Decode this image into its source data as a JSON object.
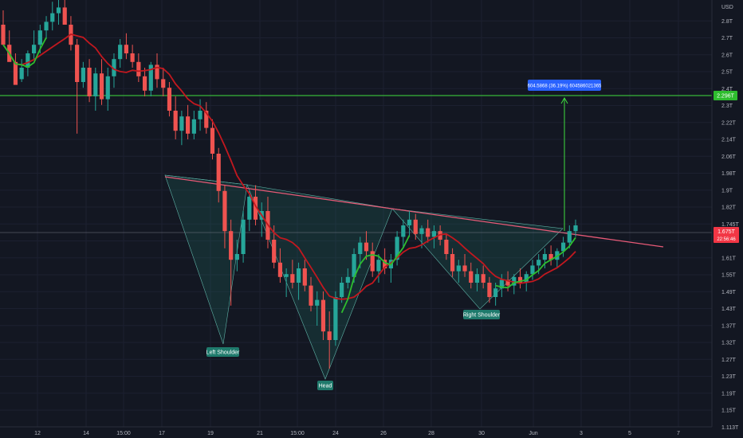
{
  "chart_data": {
    "type": "candlestick",
    "currency": "USD",
    "y_ticks": [
      "2.8T",
      "2.7T",
      "2.6T",
      "2.5T",
      "2.4T",
      "2.3T",
      "2.22T",
      "2.14T",
      "2.06T",
      "1.98T",
      "1.9T",
      "1.82T",
      "1.745T",
      "1.675T",
      "1.61T",
      "1.55T",
      "1.49T",
      "1.43T",
      "1.37T",
      "1.32T",
      "1.27T",
      "1.23T",
      "1.19T",
      "1.15T",
      "1.113T"
    ],
    "x_ticks": [
      "12",
      "14",
      "15:00",
      "17",
      "19",
      "21",
      "15:00",
      "24",
      "26",
      "28",
      "30",
      "Jun",
      "3",
      "5",
      "7"
    ],
    "price_label": "1.675T",
    "price_label_sub": "22:56:46",
    "target_label": "2.296T",
    "measure_label": "604.5868 (36.19%) 604586021365",
    "pattern_labels": [
      "Left Shoulder",
      "Head",
      "Right Shoulder"
    ],
    "series": [
      {
        "name": "",
        "kind": "moving-average",
        "color": "#c2181f"
      },
      {
        "name": "",
        "kind": "moving-average",
        "color": "#2ebd2e"
      }
    ],
    "candles_ohlc": [
      [
        2.4,
        2.45,
        2.36,
        2.33
      ],
      [
        2.33,
        2.38,
        2.32,
        2.27
      ],
      [
        2.27,
        2.3,
        2.2,
        2.19
      ],
      [
        2.21,
        2.28,
        2.2,
        2.25
      ],
      [
        2.25,
        2.31,
        2.22,
        2.3
      ],
      [
        2.3,
        2.38,
        2.28,
        2.33
      ],
      [
        2.33,
        2.4,
        2.3,
        2.38
      ],
      [
        2.38,
        2.43,
        2.35,
        2.41
      ],
      [
        2.41,
        2.48,
        2.38,
        2.44
      ],
      [
        2.44,
        2.5,
        2.4,
        2.46
      ],
      [
        2.46,
        2.5,
        2.42,
        2.4
      ],
      [
        2.4,
        2.43,
        2.31,
        2.33
      ],
      [
        2.33,
        2.35,
        2.02,
        2.2
      ],
      [
        2.2,
        2.27,
        2.18,
        2.25
      ],
      [
        2.25,
        2.28,
        2.13,
        2.15
      ],
      [
        2.15,
        2.25,
        2.1,
        2.23
      ],
      [
        2.23,
        2.28,
        2.12,
        2.14
      ],
      [
        2.14,
        2.25,
        2.1,
        2.22
      ],
      [
        2.22,
        2.3,
        2.18,
        2.28
      ],
      [
        2.28,
        2.35,
        2.25,
        2.33
      ],
      [
        2.33,
        2.37,
        2.28,
        2.3
      ],
      [
        2.3,
        2.33,
        2.25,
        2.27
      ],
      [
        2.27,
        2.3,
        2.2,
        2.22
      ],
      [
        2.22,
        2.25,
        2.15,
        2.17
      ],
      [
        2.17,
        2.27,
        2.15,
        2.26
      ],
      [
        2.26,
        2.3,
        2.18,
        2.21
      ],
      [
        2.21,
        2.25,
        2.15,
        2.18
      ],
      [
        2.18,
        2.2,
        2.08,
        2.1
      ],
      [
        2.1,
        2.15,
        2.0,
        2.03
      ],
      [
        2.03,
        2.1,
        1.98,
        2.08
      ],
      [
        2.08,
        2.12,
        2.0,
        2.02
      ],
      [
        2.02,
        2.1,
        2.0,
        2.07
      ],
      [
        2.07,
        2.14,
        2.03,
        2.1
      ],
      [
        2.1,
        2.13,
        2.02,
        2.04
      ],
      [
        2.04,
        2.07,
        1.93,
        1.95
      ],
      [
        1.95,
        1.97,
        1.78,
        1.82
      ],
      [
        1.82,
        1.84,
        1.62,
        1.68
      ],
      [
        1.68,
        1.72,
        1.42,
        1.58
      ],
      [
        1.58,
        1.65,
        1.54,
        1.6
      ],
      [
        1.6,
        1.75,
        1.57,
        1.72
      ],
      [
        1.72,
        1.82,
        1.68,
        1.8
      ],
      [
        1.8,
        1.84,
        1.7,
        1.72
      ],
      [
        1.72,
        1.78,
        1.66,
        1.75
      ],
      [
        1.75,
        1.8,
        1.62,
        1.65
      ],
      [
        1.65,
        1.7,
        1.55,
        1.57
      ],
      [
        1.57,
        1.62,
        1.5,
        1.52
      ],
      [
        1.52,
        1.55,
        1.45,
        1.53
      ],
      [
        1.53,
        1.58,
        1.48,
        1.5
      ],
      [
        1.5,
        1.57,
        1.44,
        1.55
      ],
      [
        1.55,
        1.58,
        1.47,
        1.49
      ],
      [
        1.49,
        1.52,
        1.4,
        1.42
      ],
      [
        1.42,
        1.47,
        1.35,
        1.44
      ],
      [
        1.44,
        1.47,
        1.3,
        1.33
      ],
      [
        1.33,
        1.4,
        1.2,
        1.3
      ],
      [
        1.3,
        1.47,
        1.28,
        1.45
      ],
      [
        1.45,
        1.52,
        1.43,
        1.5
      ],
      [
        1.5,
        1.55,
        1.48,
        1.52
      ],
      [
        1.52,
        1.62,
        1.5,
        1.6
      ],
      [
        1.6,
        1.66,
        1.55,
        1.64
      ],
      [
        1.64,
        1.68,
        1.58,
        1.61
      ],
      [
        1.61,
        1.64,
        1.52,
        1.54
      ],
      [
        1.54,
        1.6,
        1.5,
        1.58
      ],
      [
        1.58,
        1.62,
        1.53,
        1.55
      ],
      [
        1.55,
        1.6,
        1.5,
        1.58
      ],
      [
        1.58,
        1.68,
        1.56,
        1.66
      ],
      [
        1.66,
        1.72,
        1.62,
        1.7
      ],
      [
        1.7,
        1.75,
        1.66,
        1.72
      ],
      [
        1.72,
        1.74,
        1.65,
        1.67
      ],
      [
        1.67,
        1.7,
        1.62,
        1.69
      ],
      [
        1.69,
        1.72,
        1.64,
        1.66
      ],
      [
        1.66,
        1.7,
        1.62,
        1.68
      ],
      [
        1.68,
        1.7,
        1.63,
        1.65
      ],
      [
        1.65,
        1.67,
        1.58,
        1.6
      ],
      [
        1.6,
        1.62,
        1.52,
        1.54
      ],
      [
        1.54,
        1.58,
        1.5,
        1.56
      ],
      [
        1.56,
        1.6,
        1.52,
        1.54
      ],
      [
        1.54,
        1.57,
        1.48,
        1.5
      ],
      [
        1.5,
        1.55,
        1.47,
        1.53
      ],
      [
        1.53,
        1.56,
        1.48,
        1.5
      ],
      [
        1.5,
        1.52,
        1.43,
        1.45
      ],
      [
        1.45,
        1.5,
        1.42,
        1.48
      ],
      [
        1.48,
        1.53,
        1.45,
        1.51
      ],
      [
        1.51,
        1.54,
        1.47,
        1.49
      ],
      [
        1.49,
        1.53,
        1.46,
        1.52
      ],
      [
        1.52,
        1.55,
        1.48,
        1.5
      ],
      [
        1.5,
        1.54,
        1.47,
        1.53
      ],
      [
        1.53,
        1.58,
        1.51,
        1.56
      ],
      [
        1.56,
        1.6,
        1.53,
        1.58
      ],
      [
        1.58,
        1.62,
        1.55,
        1.6
      ],
      [
        1.6,
        1.63,
        1.56,
        1.58
      ],
      [
        1.58,
        1.62,
        1.55,
        1.61
      ],
      [
        1.61,
        1.66,
        1.59,
        1.64
      ],
      [
        1.64,
        1.7,
        1.62,
        1.68
      ],
      [
        1.68,
        1.72,
        1.66,
        1.7
      ]
    ]
  }
}
